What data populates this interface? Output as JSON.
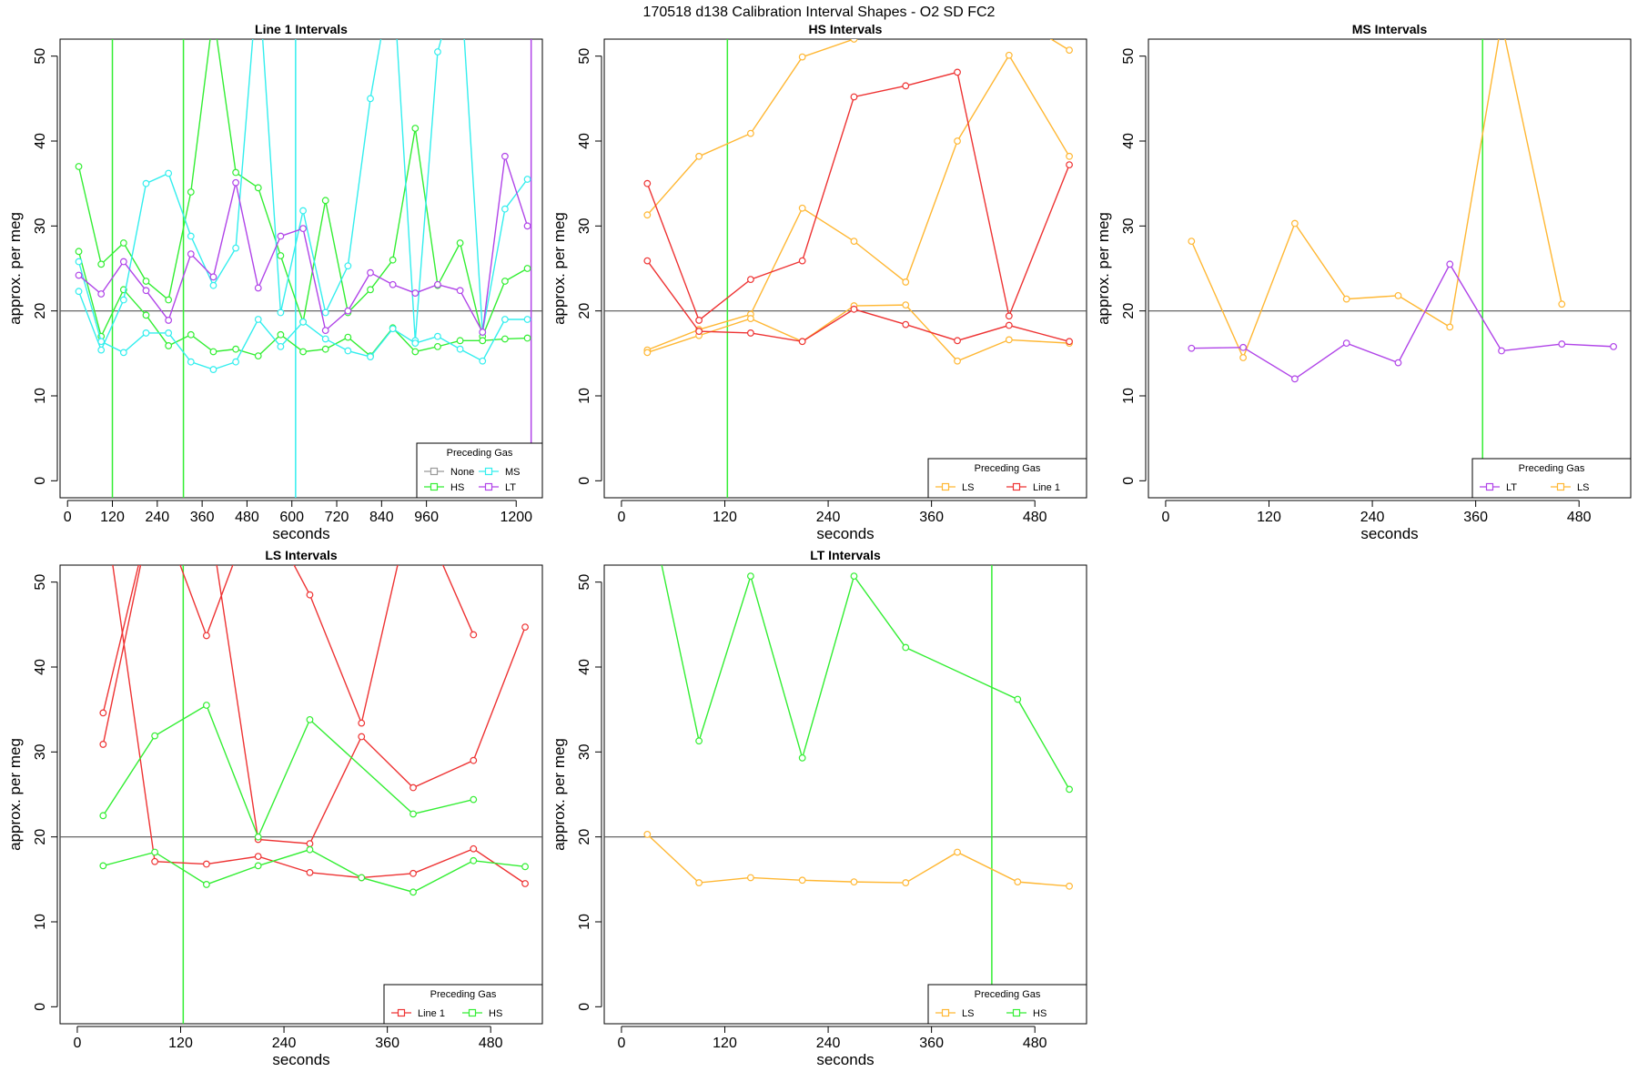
{
  "figure": {
    "title": "170518   d138   Calibration Interval Shapes - O2 SD FC2"
  },
  "colors": {
    "None": "#999999",
    "HS": "#33ee33",
    "MS": "#33eeee",
    "LT": "#b044e8",
    "LS": "#ffb733",
    "Line 1": "#ee3333",
    "reference": "#555555",
    "marker": "#339933"
  },
  "chart_data": [
    {
      "id": "p1",
      "type": "line",
      "title": "Line 1 Intervals",
      "xlabel": "seconds",
      "ylabel": "approx. per meg",
      "xlim": [
        -20,
        1270
      ],
      "ylim": [
        -2,
        52
      ],
      "xticks": [
        0,
        120,
        240,
        360,
        480,
        600,
        720,
        840,
        960,
        1200
      ],
      "yticks": [
        0,
        10,
        20,
        30,
        40,
        50
      ],
      "hline": 20,
      "vlines": [
        {
          "x": 120,
          "color": "HS"
        },
        {
          "x": 310,
          "color": "HS"
        },
        {
          "x": 610,
          "color": "MS"
        },
        {
          "x": 1240,
          "color": "LT"
        }
      ],
      "legend": {
        "title": "Preceding Gas",
        "entries": [
          "None",
          "MS",
          "HS",
          "LT"
        ],
        "columns": 2
      },
      "series": [
        {
          "name": "HS",
          "x": [
            30,
            90,
            150,
            210,
            270,
            330,
            390,
            450,
            510,
            570,
            630,
            690,
            750,
            810,
            870,
            930,
            990,
            1050,
            1110,
            1170,
            1230
          ],
          "y": [
            37,
            25.5,
            28,
            23.5,
            21.3,
            34,
            55,
            36.3,
            34.5,
            26.5,
            18.7,
            33,
            19.8,
            22.5,
            26,
            41.5,
            23,
            28,
            17,
            23.5,
            25
          ]
        },
        {
          "name": "HS",
          "x": [
            30,
            90,
            150,
            210,
            270,
            330,
            390,
            450,
            510,
            570,
            630,
            690,
            750,
            810,
            870,
            930,
            990,
            1050,
            1110,
            1170,
            1230
          ],
          "y": [
            27,
            17,
            22.5,
            19.5,
            15.9,
            17.2,
            15.2,
            15.5,
            14.7,
            17.2,
            15.2,
            15.5,
            16.9,
            14.7,
            18,
            15.2,
            15.8,
            16.5,
            16.5,
            16.7,
            16.8
          ]
        },
        {
          "name": "MS",
          "x": [
            30,
            90,
            150,
            210,
            270,
            330,
            390,
            450,
            510,
            570,
            630,
            690,
            750,
            810,
            870,
            930,
            990,
            1050,
            1110,
            1170,
            1230
          ],
          "y": [
            22.3,
            15.4,
            21.3,
            35,
            36.2,
            28.8,
            23,
            27.4,
            60,
            19.8,
            31.8,
            19.8,
            25.3,
            45,
            60,
            16.5,
            50.5,
            60,
            17.5,
            32,
            35.5
          ]
        },
        {
          "name": "MS",
          "x": [
            30,
            90,
            150,
            210,
            270,
            330,
            390,
            450,
            510,
            570,
            630,
            690,
            750,
            810,
            870,
            930,
            990,
            1050,
            1110,
            1170,
            1230
          ],
          "y": [
            25.8,
            16.4,
            15.1,
            17.4,
            17.4,
            14,
            13.1,
            14,
            19,
            15.8,
            18.7,
            16.7,
            15.3,
            14.6,
            17.9,
            16.2,
            17,
            15.5,
            14.1,
            19,
            19
          ]
        },
        {
          "name": "LT",
          "x": [
            30,
            90,
            150,
            210,
            270,
            330,
            390,
            450,
            510,
            570,
            630,
            690,
            750,
            810,
            870,
            930,
            990,
            1050,
            1110,
            1170,
            1230
          ],
          "y": [
            24.2,
            22,
            25.8,
            22.4,
            18.9,
            26.7,
            24,
            35.1,
            22.7,
            28.8,
            29.7,
            17.7,
            20,
            24.5,
            23.1,
            22.1,
            23.1,
            22.4,
            17.5,
            38.2,
            30
          ]
        }
      ]
    },
    {
      "id": "p2",
      "type": "line",
      "title": "HS Intervals",
      "xlabel": "seconds",
      "ylabel": "approx. per meg",
      "xlim": [
        -20,
        540
      ],
      "ylim": [
        -2,
        52
      ],
      "xticks": [
        0,
        120,
        240,
        360,
        480
      ],
      "yticks": [
        0,
        10,
        20,
        30,
        40,
        50
      ],
      "hline": 20,
      "vlines": [
        {
          "x": 123,
          "color": "HS"
        }
      ],
      "legend": {
        "title": "Preceding Gas",
        "entries": [
          "LS",
          "Line 1"
        ],
        "columns": 2
      },
      "series": [
        {
          "name": "LS",
          "x": [
            30,
            90,
            150,
            210,
            270,
            330,
            390,
            450,
            520
          ],
          "y": [
            31.3,
            38.2,
            40.9,
            49.9,
            52,
            55,
            55,
            55,
            50.7
          ]
        },
        {
          "name": "LS",
          "x": [
            30,
            90,
            150,
            210,
            270,
            330,
            390,
            450,
            520
          ],
          "y": [
            15.4,
            17.8,
            19.6,
            32.1,
            28.2,
            23.4,
            40,
            50.1,
            38.2
          ]
        },
        {
          "name": "LS",
          "x": [
            30,
            90,
            150,
            210,
            270,
            330,
            390,
            450,
            520
          ],
          "y": [
            15.1,
            17.1,
            19.1,
            16.4,
            20.6,
            20.7,
            14.1,
            16.6,
            16.2
          ]
        },
        {
          "name": "Line 1",
          "x": [
            30,
            90,
            150,
            210,
            270,
            330,
            390,
            450,
            520
          ],
          "y": [
            35,
            18.9,
            23.7,
            25.9,
            45.2,
            46.5,
            48.1,
            19.4,
            37.2
          ]
        },
        {
          "name": "Line 1",
          "x": [
            30,
            90,
            150,
            210,
            270,
            330,
            390,
            450,
            520
          ],
          "y": [
            25.9,
            17.6,
            17.4,
            16.4,
            20.2,
            18.4,
            16.5,
            18.3,
            16.4
          ]
        }
      ]
    },
    {
      "id": "p3",
      "type": "line",
      "title": "MS Intervals",
      "xlabel": "seconds",
      "ylabel": "approx. per meg",
      "xlim": [
        -20,
        540
      ],
      "ylim": [
        -2,
        52
      ],
      "xticks": [
        0,
        120,
        240,
        360,
        480
      ],
      "yticks": [
        0,
        10,
        20,
        30,
        40,
        50
      ],
      "hline": 20,
      "vlines": [
        {
          "x": 368,
          "color": "HS"
        }
      ],
      "legend": {
        "title": "Preceding Gas",
        "entries": [
          "LT",
          "LS"
        ],
        "columns": 2
      },
      "series": [
        {
          "name": "LS",
          "x": [
            30,
            90,
            150,
            210,
            270,
            330,
            390,
            460
          ],
          "y": [
            28.2,
            14.5,
            30.3,
            21.4,
            21.8,
            18.1,
            54,
            20.8
          ]
        },
        {
          "name": "LT",
          "x": [
            30,
            90,
            150,
            210,
            270,
            330,
            390,
            460,
            520
          ],
          "y": [
            15.6,
            15.7,
            12,
            16.2,
            13.9,
            25.5,
            15.3,
            16.1,
            15.8
          ]
        }
      ]
    },
    {
      "id": "p4",
      "type": "line",
      "title": "LS Intervals",
      "xlabel": "seconds",
      "ylabel": "approx. per meg",
      "xlim": [
        -20,
        540
      ],
      "ylim": [
        -2,
        52
      ],
      "xticks": [
        0,
        120,
        240,
        360,
        480
      ],
      "yticks": [
        0,
        10,
        20,
        30,
        40,
        50
      ],
      "hline": 20,
      "vlines": [
        {
          "x": 123,
          "color": "HS"
        }
      ],
      "legend": {
        "title": "Preceding Gas",
        "entries": [
          "Line 1",
          "HS"
        ],
        "columns": 2
      },
      "series": [
        {
          "name": "Line 1",
          "x": [
            30,
            90,
            150,
            210,
            270,
            330,
            390,
            460
          ],
          "y": [
            34.6,
            60,
            43.7,
            60,
            48.5,
            33.4,
            60,
            43.8
          ]
        },
        {
          "name": "Line 1",
          "x": [
            30,
            90,
            150,
            210,
            270,
            330,
            390,
            460,
            520
          ],
          "y": [
            30.9,
            60,
            60,
            19.7,
            19.2,
            31.8,
            25.8,
            29,
            44.7
          ]
        },
        {
          "name": "Line 1",
          "x": [
            30,
            90,
            150,
            210,
            270,
            330,
            390,
            460,
            520
          ],
          "y": [
            60,
            17.1,
            16.8,
            17.7,
            15.8,
            15.2,
            15.7,
            18.6,
            14.5
          ]
        },
        {
          "name": "HS",
          "x": [
            30,
            90,
            150,
            210,
            270,
            390,
            460
          ],
          "y": [
            22.5,
            31.9,
            35.5,
            20,
            33.8,
            22.7,
            24.4
          ]
        },
        {
          "name": "HS",
          "x": [
            30,
            90,
            150,
            210,
            270,
            330,
            390,
            460,
            520
          ],
          "y": [
            16.6,
            18.2,
            14.4,
            16.6,
            18.5,
            15.2,
            13.5,
            17.2,
            16.5
          ]
        }
      ]
    },
    {
      "id": "p5",
      "type": "line",
      "title": "LT Intervals",
      "xlabel": "seconds",
      "ylabel": "approx. per meg",
      "xlim": [
        -20,
        540
      ],
      "ylim": [
        -2,
        52
      ],
      "xticks": [
        0,
        120,
        240,
        360,
        480
      ],
      "yticks": [
        0,
        10,
        20,
        30,
        40,
        50
      ],
      "hline": 20,
      "vlines": [
        {
          "x": 430,
          "color": "HS"
        }
      ],
      "legend": {
        "title": "Preceding Gas",
        "entries": [
          "LS",
          "HS"
        ],
        "columns": 2
      },
      "series": [
        {
          "name": "HS",
          "x": [
            30,
            90,
            150,
            210,
            270,
            330,
            460,
            520
          ],
          "y": [
            60,
            31.3,
            50.7,
            29.3,
            50.7,
            42.3,
            36.2,
            25.6
          ]
        },
        {
          "name": "LS",
          "x": [
            30,
            90,
            150,
            210,
            270,
            330,
            390,
            460,
            520
          ],
          "y": [
            20.3,
            14.6,
            15.2,
            14.9,
            14.7,
            14.6,
            18.2,
            14.7,
            14.2
          ]
        }
      ]
    }
  ]
}
